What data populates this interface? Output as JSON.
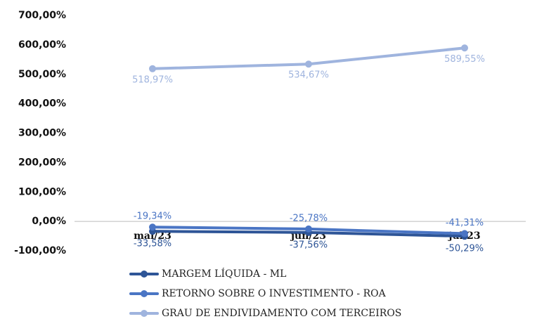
{
  "chart_data": {
    "type": "line",
    "categories": [
      "mai/23",
      "jun/23",
      "jul/23"
    ],
    "series": [
      {
        "name": "MARGEM LÍQUIDA - ML",
        "color": "#2e5597",
        "values": [
          -33.58,
          -37.56,
          -50.29
        ],
        "value_labels": [
          "-33,58%",
          "-37,56%",
          "-50,29%"
        ]
      },
      {
        "name": "RETORNO SOBRE O INVESTIMENTO - ROA",
        "color": "#4a75c4",
        "values": [
          -19.34,
          -25.78,
          -41.31
        ],
        "value_labels": [
          "-19,34%",
          "-25,78%",
          "-41,31%"
        ]
      },
      {
        "name": "GRAU DE ENDIVIDAMENTO COM TERCEIROS",
        "color": "#9fb4de",
        "values": [
          518.97,
          534.67,
          589.55
        ],
        "value_labels": [
          "518,97%",
          "534,67%",
          "589,55%"
        ]
      }
    ],
    "ylim": [
      -100,
      700
    ],
    "yticks": [
      {
        "value": -100,
        "label": "-100,00%"
      },
      {
        "value": 0,
        "label": "0,00%"
      },
      {
        "value": 100,
        "label": "100,00%"
      },
      {
        "value": 200,
        "label": "200,00%"
      },
      {
        "value": 300,
        "label": "300,00%"
      },
      {
        "value": 400,
        "label": "400,00%"
      },
      {
        "value": 500,
        "label": "500,00%"
      },
      {
        "value": 600,
        "label": "600,00%"
      },
      {
        "value": 700,
        "label": "700,00%"
      }
    ],
    "grid": false,
    "legend": "bottom"
  }
}
